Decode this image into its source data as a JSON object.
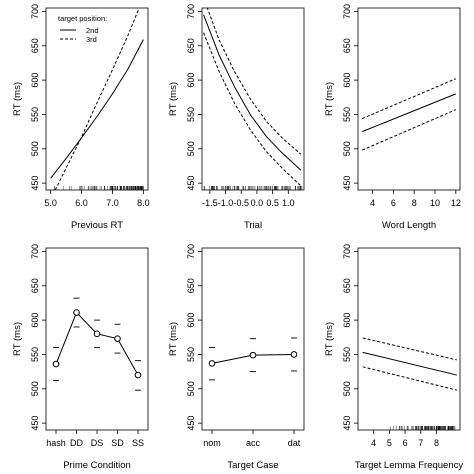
{
  "chart_data": [
    {
      "type": "line",
      "xlabel": "Previous RT",
      "ylabel": "RT (ms)",
      "xlim": [
        4.85,
        8.15
      ],
      "ylim": [
        440,
        705
      ],
      "xticks": [
        "5.0",
        "6.0",
        "7.0",
        "8.0"
      ],
      "yticks": [
        450,
        500,
        550,
        600,
        650,
        700
      ],
      "legend": {
        "title": "target position:",
        "position": "top-left",
        "entries": [
          "2nd",
          "3rd"
        ]
      },
      "series": [
        {
          "name": "2nd",
          "style": "solid",
          "x": [
            5.0,
            5.5,
            6.0,
            6.5,
            7.0,
            7.5,
            8.0
          ],
          "y": [
            457,
            486,
            516,
            547,
            580,
            616,
            659
          ]
        },
        {
          "name": "3rd",
          "style": "dashed",
          "x": [
            5.15,
            5.5,
            6.0,
            6.5,
            7.0,
            7.5,
            8.0
          ],
          "y": [
            440,
            472,
            517,
            567,
            615,
            665,
            720
          ]
        }
      ],
      "rug": {
        "from": 5.1,
        "to": 8.0
      }
    },
    {
      "type": "line",
      "xlabel": "Trial",
      "ylabel": "RT (ms)",
      "xlim": [
        -1.75,
        1.5
      ],
      "ylim": [
        440,
        705
      ],
      "xticks": [
        "-1.5",
        "-1.0",
        "-0.5",
        "0.0",
        "0.5",
        "1.0"
      ],
      "yticks": [
        450,
        500,
        550,
        600,
        650,
        700
      ],
      "series": [
        {
          "name": "",
          "style": "solid",
          "x": [
            -1.7,
            -1.2,
            -0.7,
            -0.2,
            0.3,
            0.8,
            1.4
          ],
          "y": [
            695,
            636,
            589,
            549,
            518,
            494,
            469
          ]
        },
        {
          "name": "",
          "style": "dashed",
          "x": [
            -1.7,
            -1.2,
            -0.7,
            -0.2,
            0.3,
            0.8,
            1.4
          ],
          "y": [
            720,
            658,
            611,
            572,
            540,
            516,
            492
          ]
        },
        {
          "name": "",
          "style": "dashed",
          "x": [
            -1.7,
            -1.2,
            -0.7,
            -0.2,
            0.3,
            0.8,
            1.4
          ],
          "y": [
            669,
            612,
            565,
            527,
            496,
            472,
            446
          ]
        }
      ],
      "rug": {
        "from": -1.7,
        "to": 1.45
      }
    },
    {
      "type": "line",
      "xlabel": "Word Length",
      "ylabel": "RT (ms)",
      "xlim": [
        2.6,
        12.4
      ],
      "ylim": [
        440,
        705
      ],
      "xticks": [
        "4",
        "6",
        "8",
        "10",
        "12"
      ],
      "yticks": [
        450,
        500,
        550,
        600,
        650,
        700
      ],
      "series": [
        {
          "name": "",
          "style": "solid",
          "x": [
            3,
            12
          ],
          "y": [
            525,
            580
          ]
        },
        {
          "name": "",
          "style": "dashed",
          "x": [
            3,
            12
          ],
          "y": [
            544,
            602
          ]
        },
        {
          "name": "",
          "style": "dashed",
          "x": [
            3,
            12
          ],
          "y": [
            498,
            557
          ]
        }
      ]
    },
    {
      "type": "line",
      "xlabel": "Prime Condition",
      "ylabel": "RT (ms)",
      "ylim": [
        440,
        705
      ],
      "categories": [
        "hash",
        "DD",
        "DS",
        "SD",
        "SS"
      ],
      "yticks": [
        450,
        500,
        550,
        600,
        650,
        700
      ],
      "series": [
        {
          "name": "",
          "values": [
            536,
            611,
            580,
            573,
            520
          ],
          "upper": [
            560,
            632,
            600,
            594,
            541
          ],
          "lower": [
            512,
            590,
            560,
            552,
            498
          ]
        }
      ]
    },
    {
      "type": "line",
      "xlabel": "Target Case",
      "ylabel": "RT (ms)",
      "ylim": [
        440,
        705
      ],
      "categories": [
        "nom",
        "acc",
        "dat"
      ],
      "yticks": [
        450,
        500,
        550,
        600,
        650,
        700
      ],
      "series": [
        {
          "name": "",
          "values": [
            537,
            549,
            550
          ],
          "upper": [
            560,
            573,
            574
          ],
          "lower": [
            513,
            525,
            526
          ]
        }
      ]
    },
    {
      "type": "line",
      "xlabel": "Target Lemma Frequency",
      "ylabel": "RT (ms)",
      "xlim": [
        3.0,
        9.5
      ],
      "ylim": [
        440,
        705
      ],
      "xticks": [
        "4",
        "5",
        "6",
        "7",
        "8"
      ],
      "yticks": [
        450,
        500,
        550,
        600,
        650,
        700
      ],
      "series": [
        {
          "name": "",
          "style": "solid",
          "x": [
            3.3,
            9.3
          ],
          "y": [
            553,
            520
          ]
        },
        {
          "name": "",
          "style": "dashed",
          "x": [
            3.3,
            9.3
          ],
          "y": [
            574,
            542
          ]
        },
        {
          "name": "",
          "style": "dashed",
          "x": [
            3.3,
            9.3
          ],
          "y": [
            532,
            498
          ]
        }
      ],
      "rug": {
        "from": 5.0,
        "to": 9.2
      }
    }
  ]
}
